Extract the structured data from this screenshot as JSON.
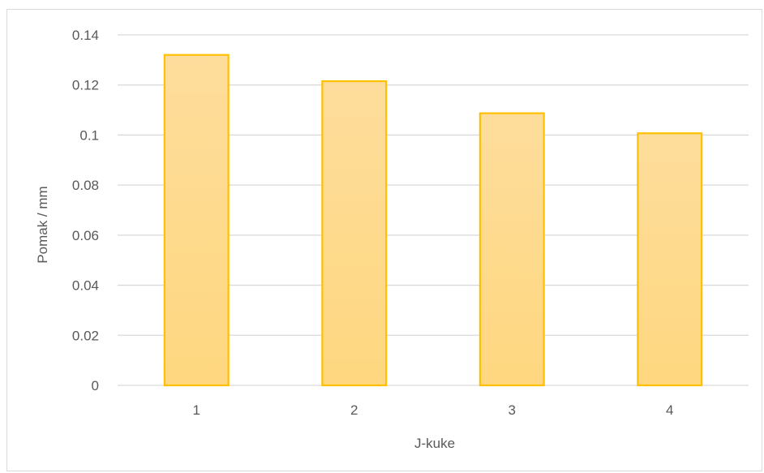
{
  "chart_data": {
    "type": "bar",
    "categories": [
      "1",
      "2",
      "3",
      "4"
    ],
    "values": [
      0.132,
      0.1215,
      0.1087,
      0.1007
    ],
    "title": "",
    "xlabel": "J-kuke",
    "ylabel": "Pomak / mm",
    "ylim": [
      0,
      0.14
    ],
    "yticks": [
      "0",
      "0.02",
      "0.04",
      "0.06",
      "0.08",
      "0.1",
      "0.12",
      "0.14"
    ],
    "grid": true,
    "legend": "none",
    "colors": {
      "bar_fill_top": "#fedd9c",
      "bar_fill_bottom": "#fed77f",
      "bar_stroke": "#ffc000",
      "grid": "#d9d9d9",
      "text": "#595959"
    }
  }
}
